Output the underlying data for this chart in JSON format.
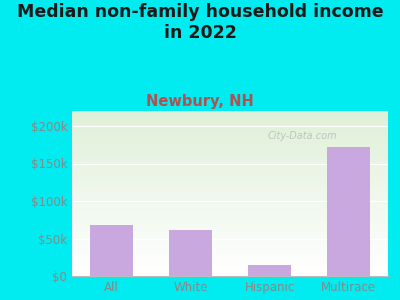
{
  "categories": [
    "All",
    "White",
    "Hispanic",
    "Multirace"
  ],
  "values": [
    68000,
    62000,
    15000,
    172000
  ],
  "bar_color": "#c9a8e0",
  "title_line1": "Median non-family household income",
  "title_line2": "in 2022",
  "subtitle": "Newbury, NH",
  "subtitle_color": "#b05050",
  "title_color": "#1a1a1a",
  "title_fontsize": 12.5,
  "subtitle_fontsize": 10.5,
  "ylim": [
    0,
    220000
  ],
  "yticks": [
    0,
    50000,
    100000,
    150000,
    200000
  ],
  "ytick_labels": [
    "$0",
    "$50k",
    "$100k",
    "$150k",
    "$200k"
  ],
  "background_outer": "#00ecf0",
  "background_plot_top": "#dff0d8",
  "background_plot_bottom": "#ffffff",
  "watermark": "City-Data.com",
  "tick_color": "#888888",
  "axis_label_fontsize": 8.5,
  "bar_width": 0.55
}
